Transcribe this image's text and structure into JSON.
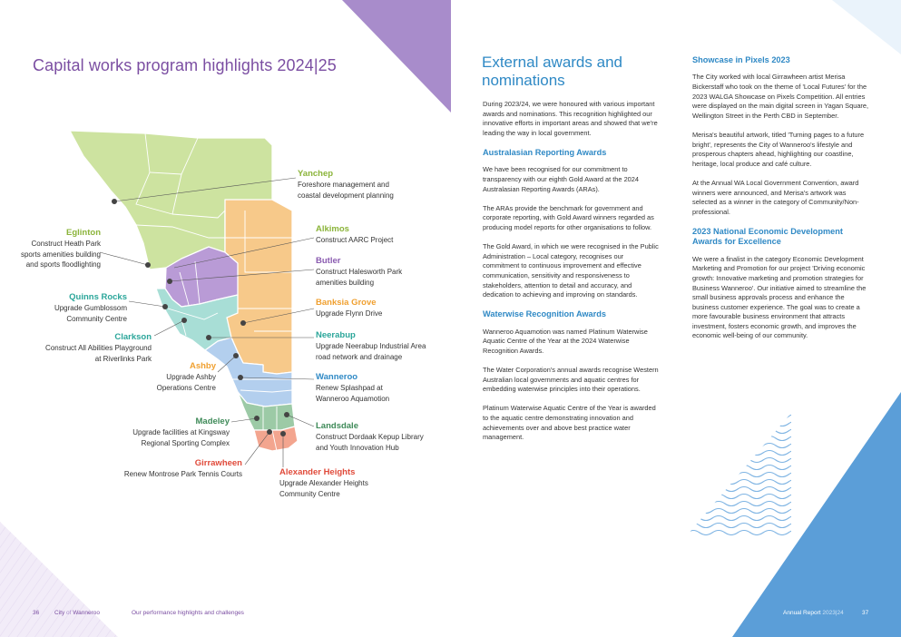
{
  "left_page": {
    "title": "Capital works program highlights 2024|25",
    "callouts": {
      "yanchep": {
        "name": "Yanchep",
        "desc": "Foreshore management and coastal development planning",
        "color": "#8bb43a"
      },
      "eglinton": {
        "name": "Eglinton",
        "desc": "Construct Heath Park sports amenities building and sports floodlighting",
        "color": "#8bb43a"
      },
      "alkimos": {
        "name": "Alkimos",
        "desc": "Construct AARC Project",
        "color": "#8bb43a"
      },
      "butler": {
        "name": "Butler",
        "desc": "Construct Halesworth Park amenities building",
        "color": "#8a5bb0"
      },
      "quinns": {
        "name": "Quinns Rocks",
        "desc": "Upgrade Gumblossom Community Centre",
        "color": "#2ba69a"
      },
      "banksia": {
        "name": "Banksia Grove",
        "desc": "Upgrade Flynn Drive",
        "color": "#f0a030"
      },
      "clarkson": {
        "name": "Clarkson",
        "desc": "Construct All Abilities Playground at Riverlinks Park",
        "color": "#2ba69a"
      },
      "neerabup": {
        "name": "Neerabup",
        "desc": "Upgrade Neerabup Industrial Area road network and drainage",
        "color": "#2ba69a"
      },
      "ashby": {
        "name": "Ashby",
        "desc": "Upgrade Ashby Operations Centre",
        "color": "#f0a030"
      },
      "wanneroo": {
        "name": "Wanneroo",
        "desc": "Renew Splashpad at Wanneroo Aquamotion",
        "color": "#2f89c5"
      },
      "madeley": {
        "name": "Madeley",
        "desc": "Upgrade facilities at Kingsway Regional Sporting Complex",
        "color": "#3e8a58"
      },
      "landsdale": {
        "name": "Landsdale",
        "desc": "Construct Dordaak Kepup Library and Youth Innovation Hub",
        "color": "#3e8a58"
      },
      "girrawheen": {
        "name": "Girrawheen",
        "desc": "Renew Montrose Park Tennis Courts",
        "color": "#e04a3a"
      },
      "alexander": {
        "name": "Alexander Heights",
        "desc": "Upgrade Alexander Heights Community Centre",
        "color": "#e04a3a"
      }
    },
    "footer": {
      "page_number": "36",
      "city": "City",
      "of": "of",
      "wanneroo": "Wanneroo",
      "section": "Our performance highlights and challenges"
    }
  },
  "right_page": {
    "title": "External awards and nominations",
    "intro": "During 2023/24, we were honoured with various important awards and nominations. This recognition highlighted our innovative efforts in important areas and showed that we're leading the way in local government.",
    "australasian": {
      "heading": "Australasian Reporting Awards",
      "p1": "We have been recognised for our commitment to transparency with our eighth Gold Award at the 2024 Australasian Reporting Awards (ARAs).",
      "p2": "The ARAs provide the benchmark for government and corporate reporting, with Gold Award winners regarded as producing model reports for other organisations to follow.",
      "p3": "The Gold Award, in which we were recognised in the Public Administration – Local category, recognises our commitment to continuous improvement and effective communication, sensitivity and responsiveness to stakeholders, attention to detail and accuracy, and dedication to achieving and improving on standards."
    },
    "waterwise": {
      "heading": "Waterwise Recognition Awards",
      "p1": "Wanneroo Aquamotion was named Platinum Waterwise Aquatic Centre of the Year at the 2024 Waterwise Recognition Awards.",
      "p2": "The Water Corporation's annual awards recognise Western Australian local governments and aquatic centres for embedding waterwise principles into their operations.",
      "p3": "Platinum Waterwise Aquatic Centre of the Year is awarded to the aquatic centre demonstrating innovation and achievements over and above best practice water management."
    },
    "showcase": {
      "heading": "Showcase in Pixels 2023",
      "p1": "The City worked with local Girrawheen artist Merisa Bickerstaff who took on the theme of 'Local Futures' for the 2023 WALGA Showcase on Pixels Competition. All entries were displayed on the main digital screen in Yagan Square, Wellington Street in the Perth CBD in September.",
      "p2": "Merisa's beautiful artwork, titled 'Turning pages to a future bright', represents the City of Wanneroo's lifestyle and prosperous chapters ahead, highlighting our coastline, heritage, local produce and café culture.",
      "p3": "At the Annual WA Local Government Convention, award winners were announced, and Merisa's artwork was selected as a winner in the category of Community/Non-professional."
    },
    "economic": {
      "heading": "2023 National Economic Development Awards for Excellence",
      "p1": "We were a finalist in the category Economic Development Marketing and Promotion for our project 'Driving economic growth: Innovative marketing and promotion strategies for Business Wanneroo'. Our initiative aimed to streamline the small business approvals process and enhance the business customer experience. The goal was to create a more favourable business environment that attracts investment, fosters economic growth, and improves the economic well-being of our community."
    },
    "footer": {
      "report": "Annual Report",
      "year": "2023|24",
      "page_number": "37"
    }
  }
}
